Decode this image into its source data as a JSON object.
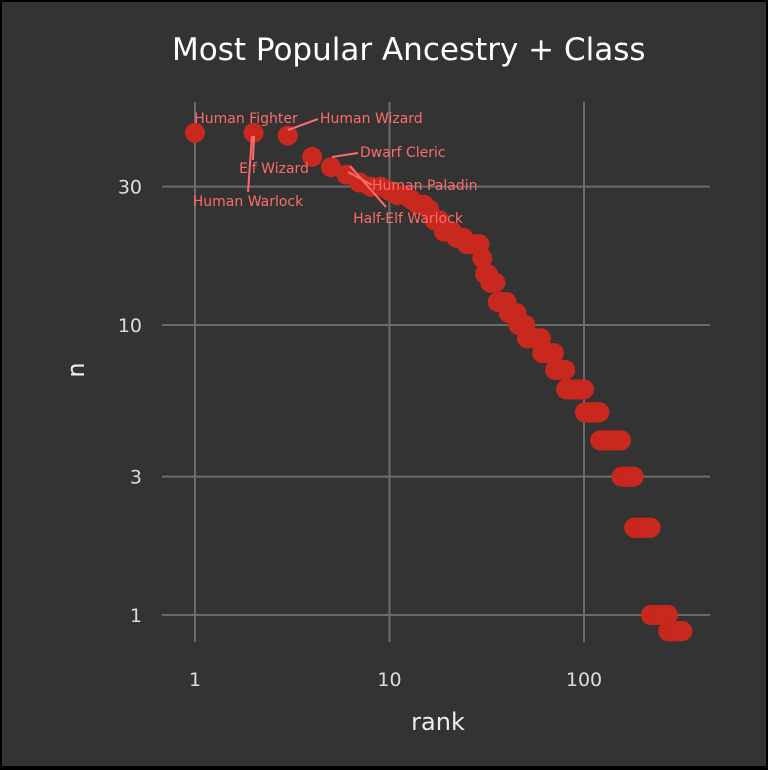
{
  "chart_data": {
    "type": "scatter",
    "title": "Most Popular Ancestry + Class",
    "xlabel": "rank",
    "ylabel": "n",
    "xscale": "log",
    "yscale": "log",
    "xlim": [
      1,
      330
    ],
    "ylim": [
      0.84,
      56
    ],
    "xticks": [
      1,
      10,
      100
    ],
    "xtick_labels": [
      "1",
      "10",
      "100"
    ],
    "yticks": [
      1,
      3,
      10,
      30
    ],
    "ytick_labels": [
      "1",
      "3",
      "10",
      "30"
    ],
    "grid": true,
    "point_color": "#c8281e",
    "label_color": "#ff6b6b",
    "background": "#333333",
    "levels": [
      {
        "n": 46,
        "rank_from": 1,
        "rank_to": 2
      },
      {
        "n": 45,
        "rank_from": 3,
        "rank_to": 3
      },
      {
        "n": 38,
        "rank_from": 4,
        "rank_to": 4
      },
      {
        "n": 35,
        "rank_from": 5,
        "rank_to": 5
      },
      {
        "n": 33,
        "rank_from": 6,
        "rank_to": 6
      },
      {
        "n": 31,
        "rank_from": 7,
        "rank_to": 7
      },
      {
        "n": 30,
        "rank_from": 8,
        "rank_to": 9
      },
      {
        "n": 29,
        "rank_from": 10,
        "rank_to": 10
      },
      {
        "n": 28,
        "rank_from": 11,
        "rank_to": 12
      },
      {
        "n": 27,
        "rank_from": 13,
        "rank_to": 13
      },
      {
        "n": 26,
        "rank_from": 14,
        "rank_to": 15
      },
      {
        "n": 25,
        "rank_from": 16,
        "rank_to": 16
      },
      {
        "n": 23,
        "rank_from": 17,
        "rank_to": 18
      },
      {
        "n": 21,
        "rank_from": 19,
        "rank_to": 21
      },
      {
        "n": 20,
        "rank_from": 22,
        "rank_to": 24
      },
      {
        "n": 19,
        "rank_from": 25,
        "rank_to": 29
      },
      {
        "n": 17,
        "rank_from": 30,
        "rank_to": 30
      },
      {
        "n": 15,
        "rank_from": 31,
        "rank_to": 32
      },
      {
        "n": 14,
        "rank_from": 33,
        "rank_to": 35
      },
      {
        "n": 12,
        "rank_from": 36,
        "rank_to": 40
      },
      {
        "n": 11,
        "rank_from": 41,
        "rank_to": 45
      },
      {
        "n": 10,
        "rank_from": 46,
        "rank_to": 50
      },
      {
        "n": 9,
        "rank_from": 51,
        "rank_to": 60
      },
      {
        "n": 8,
        "rank_from": 61,
        "rank_to": 70
      },
      {
        "n": 7,
        "rank_from": 71,
        "rank_to": 80
      },
      {
        "n": 6,
        "rank_from": 81,
        "rank_to": 100
      },
      {
        "n": 5,
        "rank_from": 101,
        "rank_to": 120
      },
      {
        "n": 4,
        "rank_from": 121,
        "rank_to": 155
      },
      {
        "n": 3,
        "rank_from": 156,
        "rank_to": 180
      },
      {
        "n": 2,
        "rank_from": 181,
        "rank_to": 220
      },
      {
        "n": 1,
        "rank_from": 221,
        "rank_to": 270
      },
      {
        "n": 0.88,
        "rank_from": 271,
        "rank_to": 320
      }
    ],
    "annotations": [
      {
        "label": "Human Fighter",
        "rank": 1,
        "n": 46
      },
      {
        "label": "Elf Wizard",
        "rank": 2,
        "n": 46
      },
      {
        "label": "Human Warlock",
        "rank": 2,
        "n": 46
      },
      {
        "label": "Human Wizard",
        "rank": 3,
        "n": 45
      },
      {
        "label": "Dwarf Cleric",
        "rank": 5,
        "n": 35
      },
      {
        "label": "Human Paladin",
        "rank": 6,
        "n": 33
      },
      {
        "label": "Half-Elf Warlock",
        "rank": 7,
        "n": 31
      }
    ]
  }
}
